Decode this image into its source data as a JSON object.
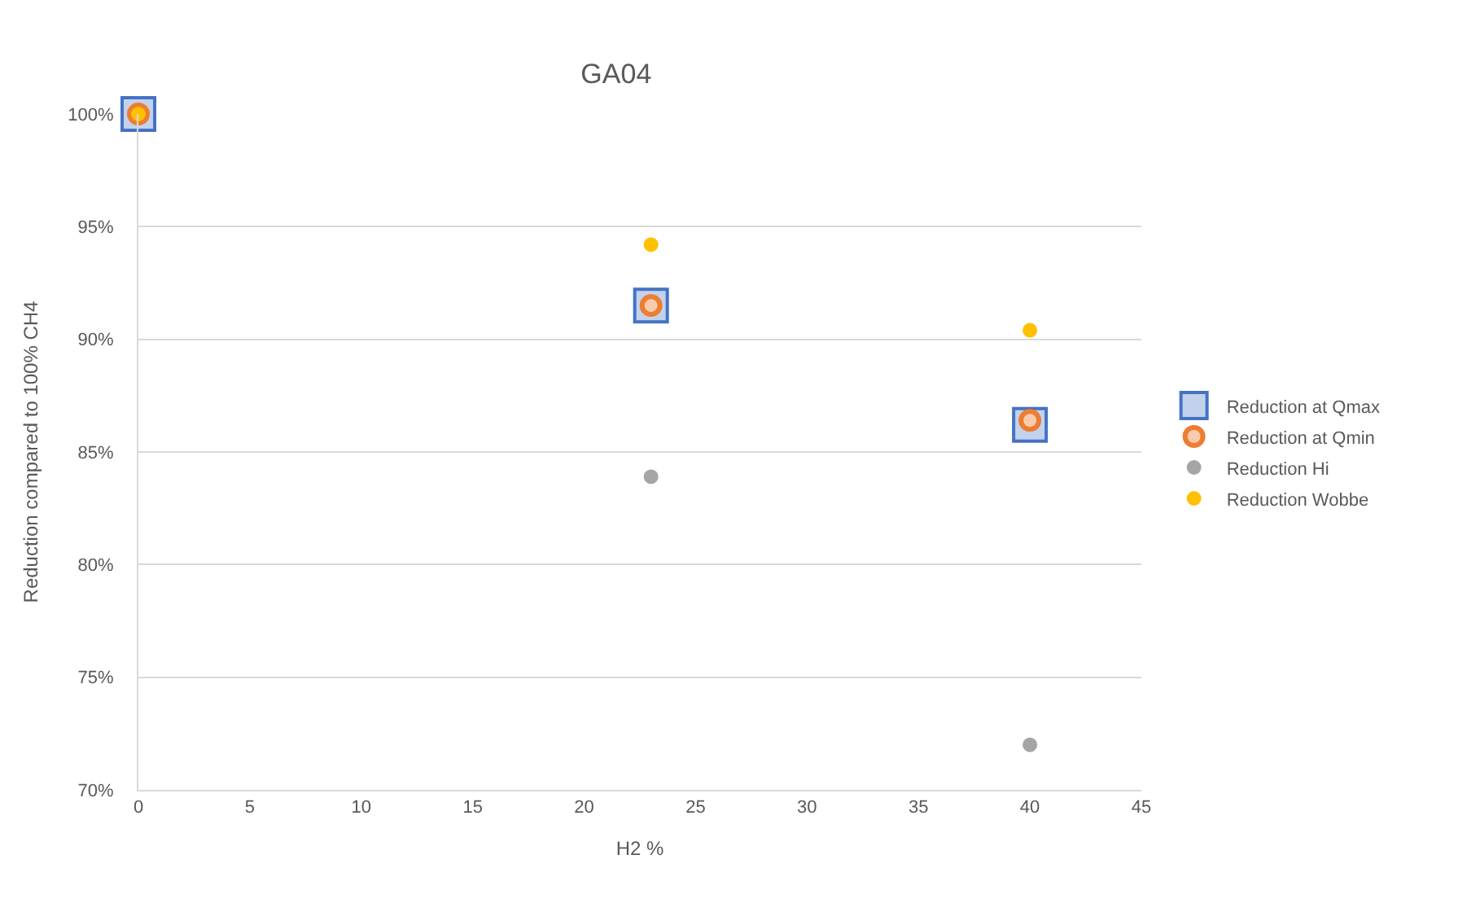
{
  "chart_data": {
    "type": "scatter",
    "title": "GA04",
    "xlabel": "H2 %",
    "ylabel": "Reduction compared to 100% CH4",
    "x": [
      0,
      23,
      40
    ],
    "series": [
      {
        "name": "Reduction at Qmax",
        "color": "#4472c4",
        "marker": "square",
        "values": [
          100,
          91.5,
          86.2
        ]
      },
      {
        "name": "Reduction at Qmin",
        "color": "#ed7d31",
        "marker": "circle",
        "values": [
          100,
          91.5,
          86.4
        ]
      },
      {
        "name": "Reduction Hi",
        "color": "#a5a5a5",
        "marker": "circle",
        "values": [
          null,
          83.9,
          72.0
        ]
      },
      {
        "name": "Reduction Wobbe",
        "color": "#ffc000",
        "marker": "circle",
        "values": [
          100,
          94.2,
          90.4
        ]
      }
    ],
    "xlim": [
      0,
      45
    ],
    "xticks": [
      0,
      5,
      10,
      15,
      20,
      25,
      30,
      35,
      40,
      45
    ],
    "ylim": [
      70,
      100
    ],
    "yticks": [
      {
        "value": 70,
        "label": "70%"
      },
      {
        "value": 75,
        "label": "75%"
      },
      {
        "value": 80,
        "label": "80%"
      },
      {
        "value": 85,
        "label": "85%"
      },
      {
        "value": 90,
        "label": "90%"
      },
      {
        "value": 95,
        "label": "95%"
      },
      {
        "value": 100,
        "label": "100%"
      }
    ],
    "grid": "y",
    "legend": "right"
  }
}
